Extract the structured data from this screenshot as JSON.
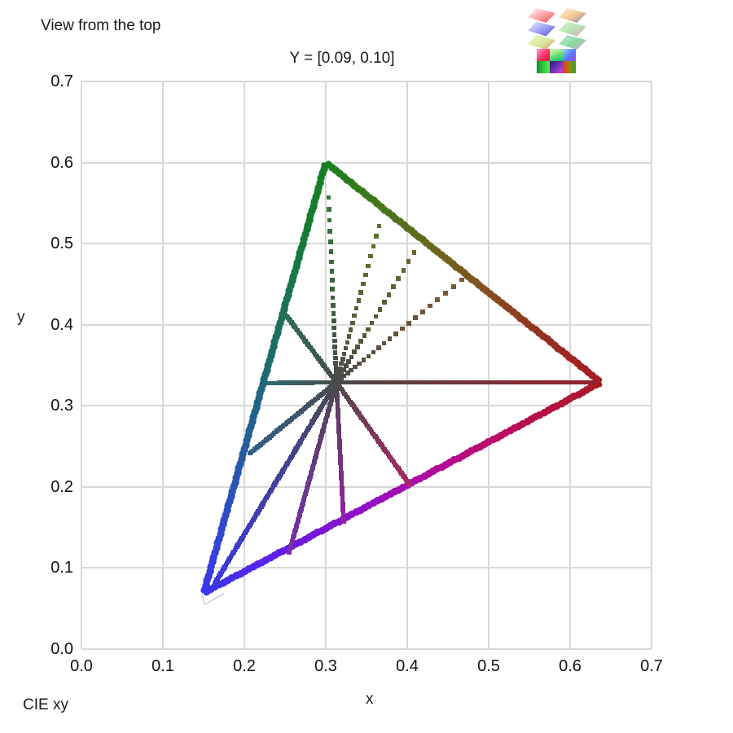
{
  "page": {
    "suptitle": "View from the top",
    "footer_left": "CIE xy"
  },
  "chart_data": {
    "type": "scatter",
    "title": "Y = [0.09, 0.10]",
    "xlabel": "x",
    "ylabel": "y",
    "xlim": [
      0.0,
      0.7
    ],
    "ylim": [
      0.0,
      0.7
    ],
    "x_ticks": [
      "0.0",
      "0.1",
      "0.2",
      "0.3",
      "0.4",
      "0.5",
      "0.6",
      "0.7"
    ],
    "y_ticks": [
      "0.0",
      "0.1",
      "0.2",
      "0.3",
      "0.4",
      "0.5",
      "0.6",
      "0.7"
    ],
    "grid": true,
    "grid_color": "#d8d8d8",
    "legend": "none",
    "description": "CIE xy chromaticity slice of the sRGB cube for luminance Y in [0.09,0.10]; gamut triangle outline with 12 hue spokes radiating from the white point",
    "white_point": {
      "x": 0.313,
      "y": 0.329,
      "color": "#4a4a4a"
    },
    "gamut_vertices": {
      "red": [
        0.638,
        0.329
      ],
      "green": [
        0.3,
        0.6
      ],
      "blue": [
        0.15,
        0.069
      ]
    },
    "wireframe_tip": {
      "point": [
        0.151,
        0.055
      ],
      "arm": [
        0.175,
        0.069
      ],
      "color": "#b3b3b3"
    },
    "edges": [
      {
        "name": "edge-blue-green",
        "from": [
          0.15,
          0.069
        ],
        "to": [
          0.3,
          0.6
        ],
        "colors": [
          "#3a35ee",
          "#2b4fc0",
          "#21628c",
          "#1c6f60",
          "#16793a",
          "#15801f"
        ]
      },
      {
        "name": "edge-green-red",
        "from": [
          0.3,
          0.6
        ],
        "to": [
          0.638,
          0.329
        ],
        "colors": [
          "#15801f",
          "#47761b",
          "#6c651d",
          "#854d20",
          "#942f22",
          "#a81b22"
        ]
      },
      {
        "name": "edge-blue-red",
        "from": [
          0.15,
          0.069
        ],
        "to": [
          0.638,
          0.329
        ],
        "colors": [
          "#3a35ee",
          "#5b21e8",
          "#8312d0",
          "#a50bb0",
          "#b90b7c",
          "#b80f4a",
          "#a81b22"
        ]
      }
    ],
    "spokes": [
      {
        "hue": "green",
        "end": [
          0.303,
          0.569
        ],
        "color": "#2e7b33",
        "style": "dotted"
      },
      {
        "hue": "yellow-green",
        "end": [
          0.368,
          0.532
        ],
        "color": "#5c7629",
        "style": "dotted"
      },
      {
        "hue": "olive",
        "end": [
          0.413,
          0.497
        ],
        "color": "#6f6527",
        "style": "dotted"
      },
      {
        "hue": "orange-brown",
        "end": [
          0.468,
          0.456
        ],
        "color": "#7d5930",
        "style": "dotted"
      },
      {
        "hue": "red",
        "end": [
          0.634,
          0.329
        ],
        "color": "#93202c",
        "style": "solid"
      },
      {
        "hue": "rose",
        "end": [
          0.403,
          0.203
        ],
        "color": "#a52865",
        "style": "solid"
      },
      {
        "hue": "magenta-purple",
        "end": [
          0.322,
          0.156
        ],
        "color": "#93229f",
        "style": "solid"
      },
      {
        "hue": "violet",
        "end": [
          0.255,
          0.119
        ],
        "color": "#7a2fae",
        "style": "solid"
      },
      {
        "hue": "blue",
        "end": [
          0.163,
          0.08
        ],
        "color": "#3a3ae0",
        "style": "solid"
      },
      {
        "hue": "steel-blue",
        "end": [
          0.205,
          0.24
        ],
        "color": "#34608a",
        "style": "solid"
      },
      {
        "hue": "teal",
        "end": [
          0.227,
          0.328
        ],
        "color": "#2e6a6e",
        "style": "solid"
      },
      {
        "hue": "sea-green",
        "end": [
          0.248,
          0.416
        ],
        "color": "#2d6f52",
        "style": "solid"
      }
    ]
  },
  "logo": {
    "name": "rgb-colourspace-swatch-logo",
    "diamonds": [
      {
        "colors": [
          "#ffffff",
          "#ff9aa0",
          "#e04848"
        ]
      },
      {
        "colors": [
          "#fff2d8",
          "#f0c890",
          "#6f7fd8"
        ]
      },
      {
        "colors": [
          "#eef0ff",
          "#9a9af0",
          "#5050d8"
        ]
      },
      {
        "colors": [
          "#d8f5d0",
          "#b8e0b0",
          "#e890c8"
        ]
      },
      {
        "colors": [
          "#eef5c0",
          "#d8e8a0",
          "#f08868"
        ]
      },
      {
        "colors": [
          "#c0f0d8",
          "#88d8a0",
          "#e8a0d8"
        ]
      }
    ],
    "cells": [
      {
        "colors": [
          "#ff9ad2",
          "#ff3366",
          "#e01133"
        ],
        "angle": 135
      },
      {
        "colors": [
          "#ddffaa",
          "#66dd77",
          "#11bb66"
        ],
        "angle": 160
      },
      {
        "colors": [
          "#99ddff",
          "#5577ff",
          "#aa44ee"
        ],
        "angle": 135
      },
      {
        "colors": [
          "#0f8f2f",
          "#33cc44",
          "#55ee55"
        ],
        "angle": 90
      },
      {
        "colors": [
          "#1d1d70",
          "#7733bb",
          "#dd44dd"
        ],
        "angle": 135
      },
      {
        "colors": [
          "#ee3311",
          "#998811",
          "#22aa33"
        ],
        "angle": 90
      }
    ]
  }
}
